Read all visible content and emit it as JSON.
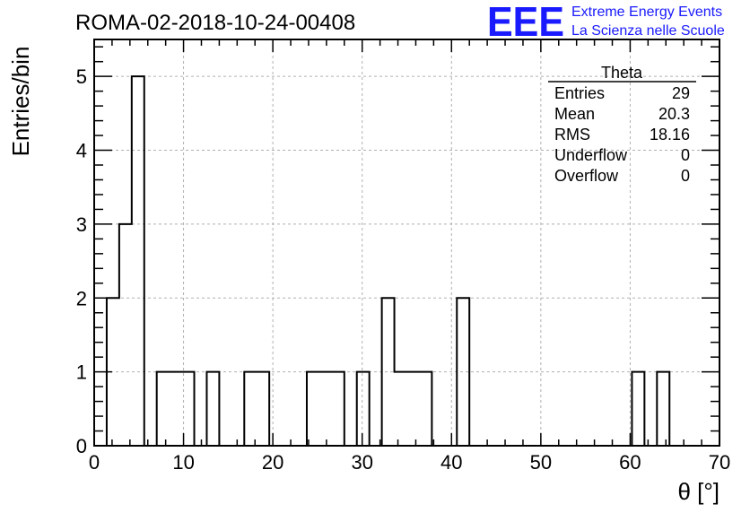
{
  "chart_data": {
    "type": "histogram",
    "title": "ROMA-02-2018-10-24-00408",
    "xlabel": "θ [°]",
    "ylabel": "Entries/bin",
    "xlim": [
      0,
      70
    ],
    "ylim": [
      0,
      5.5
    ],
    "x_ticks": [
      0,
      10,
      20,
      30,
      40,
      50,
      60,
      70
    ],
    "y_ticks": [
      0,
      1,
      2,
      3,
      4,
      5
    ],
    "bin_width": 1.4,
    "bin_edges_start": 0,
    "values": [
      0,
      2,
      3,
      5,
      0,
      1,
      1,
      1,
      0,
      1,
      0,
      0,
      1,
      1,
      0,
      0,
      0,
      1,
      1,
      1,
      0,
      1,
      0,
      2,
      1,
      1,
      1,
      0,
      0,
      2,
      0,
      0,
      0,
      0,
      0,
      0,
      0,
      0,
      0,
      0,
      0,
      0,
      0,
      1,
      0,
      1,
      0,
      0,
      0,
      0
    ],
    "grid": true,
    "stats_box": {
      "name": "Theta",
      "rows": [
        {
          "label": "Entries",
          "value": "29"
        },
        {
          "label": "Mean",
          "value": "20.3"
        },
        {
          "label": "RMS",
          "value": "18.16"
        },
        {
          "label": "Underflow",
          "value": "0"
        },
        {
          "label": "Overflow",
          "value": "0"
        }
      ]
    }
  },
  "logo": {
    "mark": "EEE",
    "line1": "Extreme Energy Events",
    "line2": "La Scienza nelle Scuole",
    "color": "#1a1aff"
  }
}
